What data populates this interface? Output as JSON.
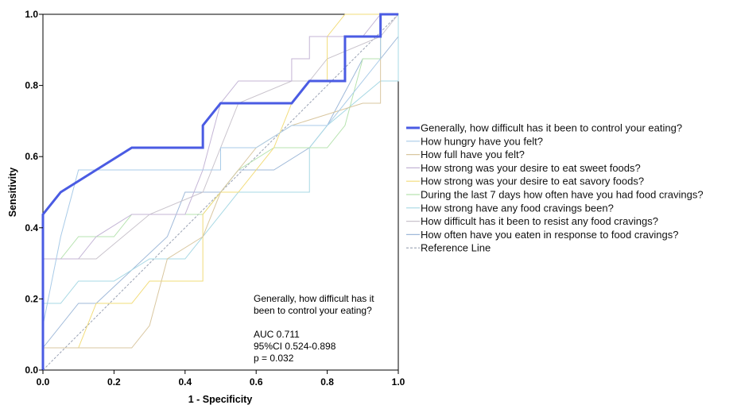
{
  "chart_data": {
    "type": "line",
    "xlabel": "1 - Specificity",
    "ylabel": "Sensitivity",
    "xlim": [
      0,
      1
    ],
    "ylim": [
      0,
      1
    ],
    "x_ticks": [
      "0.0",
      "0.2",
      "0.4",
      "0.6",
      "0.8",
      "1.0"
    ],
    "y_ticks": [
      "0.0",
      "0.2",
      "0.4",
      "0.6",
      "0.8",
      "1.0"
    ],
    "grid": false,
    "legend_position": "right",
    "series": [
      {
        "name": "Generally, how difficult has it been to control your eating?",
        "color": "#4a5be3",
        "width": 3,
        "points": [
          [
            0,
            0
          ],
          [
            0,
            0.4375
          ],
          [
            0.05,
            0.5
          ],
          [
            0.25,
            0.625
          ],
          [
            0.45,
            0.625
          ],
          [
            0.45,
            0.6875
          ],
          [
            0.5,
            0.75
          ],
          [
            0.7,
            0.75
          ],
          [
            0.75,
            0.8125
          ],
          [
            0.85,
            0.8125
          ],
          [
            0.85,
            0.9375
          ],
          [
            0.95,
            0.9375
          ],
          [
            0.95,
            1
          ],
          [
            1,
            1
          ]
        ]
      },
      {
        "name": "How hungry have you felt?",
        "color": "#a9cbe8",
        "width": 1,
        "points": [
          [
            0,
            0
          ],
          [
            0,
            0.125
          ],
          [
            0.05,
            0.375
          ],
          [
            0.1,
            0.5625
          ],
          [
            0.5,
            0.5625
          ],
          [
            0.5,
            0.625
          ],
          [
            0.6,
            0.625
          ],
          [
            0.7,
            0.6875
          ],
          [
            0.8,
            0.6875
          ],
          [
            0.95,
            0.875
          ],
          [
            0.95,
            1
          ],
          [
            1,
            1
          ]
        ]
      },
      {
        "name": "How full have you felt?",
        "color": "#d9c7a0",
        "width": 1,
        "points": [
          [
            0,
            0
          ],
          [
            0,
            0.0625
          ],
          [
            0.25,
            0.0625
          ],
          [
            0.3,
            0.125
          ],
          [
            0.35,
            0.3125
          ],
          [
            0.45,
            0.375
          ],
          [
            0.5,
            0.5
          ],
          [
            0.6,
            0.625
          ],
          [
            0.7,
            0.6875
          ],
          [
            0.9,
            0.75
          ],
          [
            0.95,
            0.75
          ],
          [
            0.95,
            1
          ],
          [
            1,
            1
          ]
        ]
      },
      {
        "name": "How strong was your desire to eat sweet foods?",
        "color": "#c4b5d6",
        "width": 1,
        "points": [
          [
            0,
            0
          ],
          [
            0,
            0.3125
          ],
          [
            0.1,
            0.3125
          ],
          [
            0.15,
            0.375
          ],
          [
            0.25,
            0.4375
          ],
          [
            0.4,
            0.4375
          ],
          [
            0.45,
            0.5625
          ],
          [
            0.5,
            0.75
          ],
          [
            0.55,
            0.8125
          ],
          [
            0.7,
            0.8125
          ],
          [
            0.7,
            0.875
          ],
          [
            0.75,
            0.875
          ],
          [
            0.75,
            0.9375
          ],
          [
            0.9,
            0.9375
          ],
          [
            0.95,
            1
          ],
          [
            1,
            1
          ]
        ]
      },
      {
        "name": "How strong was your desire to eat savory foods?",
        "color": "#f2dc7a",
        "width": 1,
        "points": [
          [
            0,
            0
          ],
          [
            0,
            0.0625
          ],
          [
            0.1,
            0.0625
          ],
          [
            0.15,
            0.1875
          ],
          [
            0.25,
            0.1875
          ],
          [
            0.3,
            0.25
          ],
          [
            0.45,
            0.25
          ],
          [
            0.45,
            0.4375
          ],
          [
            0.5,
            0.5
          ],
          [
            0.55,
            0.5
          ],
          [
            0.65,
            0.625
          ],
          [
            0.7,
            0.75
          ],
          [
            0.75,
            0.8125
          ],
          [
            0.8,
            0.8125
          ],
          [
            0.8,
            0.9375
          ],
          [
            0.85,
            1
          ],
          [
            1,
            1
          ]
        ]
      },
      {
        "name": "During the last 7 days how often have you had food cravings?",
        "color": "#b7e3b0",
        "width": 1,
        "points": [
          [
            0,
            0
          ],
          [
            0,
            0.3125
          ],
          [
            0.05,
            0.3125
          ],
          [
            0.1,
            0.375
          ],
          [
            0.2,
            0.375
          ],
          [
            0.25,
            0.4375
          ],
          [
            0.45,
            0.4375
          ],
          [
            0.55,
            0.5625
          ],
          [
            0.65,
            0.625
          ],
          [
            0.8,
            0.625
          ],
          [
            0.85,
            0.6875
          ],
          [
            0.9,
            0.875
          ],
          [
            0.95,
            0.875
          ],
          [
            0.95,
            1
          ],
          [
            1,
            1
          ]
        ]
      },
      {
        "name": "How strong have any food cravings been?",
        "color": "#a7d8e4",
        "width": 1,
        "points": [
          [
            0,
            0
          ],
          [
            0,
            0.1875
          ],
          [
            0.05,
            0.1875
          ],
          [
            0.1,
            0.25
          ],
          [
            0.2,
            0.25
          ],
          [
            0.3,
            0.3125
          ],
          [
            0.4,
            0.3125
          ],
          [
            0.45,
            0.375
          ],
          [
            0.55,
            0.5
          ],
          [
            0.75,
            0.5
          ],
          [
            0.75,
            0.625
          ],
          [
            0.8,
            0.6875
          ],
          [
            0.95,
            0.8125
          ],
          [
            1,
            0.8125
          ],
          [
            1,
            1
          ]
        ]
      },
      {
        "name": "How difficult has it been to resist any food cravings?",
        "color": "#c9c3cc",
        "width": 1,
        "points": [
          [
            0,
            0
          ],
          [
            0,
            0.3125
          ],
          [
            0.1,
            0.3125
          ],
          [
            0.15,
            0.3125
          ],
          [
            0.3,
            0.4375
          ],
          [
            0.45,
            0.5
          ],
          [
            0.55,
            0.75
          ],
          [
            0.7,
            0.8125
          ],
          [
            0.75,
            0.8125
          ],
          [
            0.8,
            0.875
          ],
          [
            0.95,
            0.9375
          ],
          [
            1,
            1
          ]
        ]
      },
      {
        "name": "How often have you eaten in response to food cravings?",
        "color": "#9fb9d9",
        "width": 1,
        "points": [
          [
            0,
            0
          ],
          [
            0,
            0.0625
          ],
          [
            0.05,
            0.125
          ],
          [
            0.1,
            0.1875
          ],
          [
            0.15,
            0.1875
          ],
          [
            0.35,
            0.375
          ],
          [
            0.4,
            0.5
          ],
          [
            0.5,
            0.5
          ],
          [
            0.55,
            0.5625
          ],
          [
            0.65,
            0.5625
          ],
          [
            0.75,
            0.625
          ],
          [
            0.8,
            0.6875
          ],
          [
            0.9,
            0.875
          ],
          [
            0.95,
            0.875
          ],
          [
            1,
            0.9375
          ],
          [
            1,
            1
          ]
        ]
      }
    ],
    "reference_line": {
      "name": "Reference Line",
      "color": "#9aa2b4",
      "points": [
        [
          0,
          0
        ],
        [
          1,
          1
        ]
      ]
    },
    "annotation": {
      "lines": [
        "Generally, how difficult has it",
        "been to control your eating?",
        "",
        "AUC   0.711",
        "95%CI   0.524-0.898",
        "p = 0.032"
      ],
      "auc": 0.711,
      "ci": [
        0.524,
        0.898
      ],
      "p": 0.032
    }
  }
}
